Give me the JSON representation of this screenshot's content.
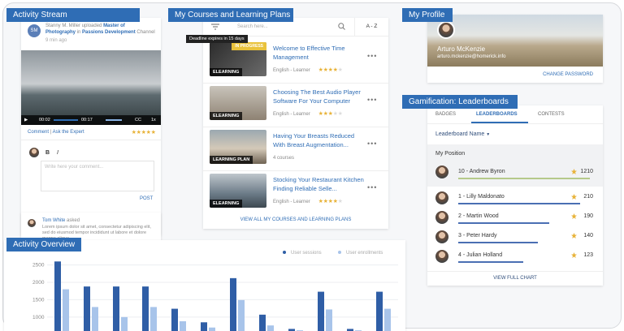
{
  "activity_stream": {
    "title": "Activity Stream",
    "post": {
      "avatar": "SM",
      "author": "Stanny M. Miller",
      "action": "uploaded",
      "item": "Master of Photography",
      "preposition": "in",
      "channel": "Passions Development",
      "channel_suffix": "Channel",
      "time": "9 min ago",
      "player": {
        "current": "00:02",
        "duration": "00:17",
        "cc": "CC",
        "speed": "1x"
      },
      "links": [
        "Comment",
        "|",
        "Ask the Expert"
      ],
      "rating": 5
    },
    "toolbar": [
      "B",
      "I"
    ],
    "comment_placeholder": "Write here your comment...",
    "post_button": "POST",
    "question": {
      "author": "Tom White",
      "action": "asked",
      "text": "Lorem ipsum dolor sit amet, consectetur adipiscing elit, sed do eiusmod tempor incididunt ut labore et dolore magna aliqua"
    }
  },
  "courses": {
    "title": "My Courses and Learning Plans",
    "search_placeholder": "Search here...",
    "sort": "A - Z",
    "tooltip": "Deadline expires in 15 days",
    "items": [
      {
        "title": "Welcome to Effective Time Management",
        "badge": "ELEARNING",
        "status": "IN PROGRESS",
        "meta": "English - Learner",
        "rating": 4
      },
      {
        "title": "Choosing The Best Audio Player Software For Your Computer",
        "badge": "ELEARNING",
        "meta": "English - Learner",
        "rating": 3
      },
      {
        "title": "Having Your Breasts Reduced With Breast Augmentation...",
        "badge": "LEARNING PLAN",
        "meta": "4 courses"
      },
      {
        "title": "Stocking Your Restaurant Kitchen Finding Reliable Selle...",
        "badge": "ELEARNING",
        "meta": "English - Learner",
        "rating": 4
      }
    ],
    "view_all": "VIEW ALL MY COURSES AND LEARNING PLANS"
  },
  "profile": {
    "title": "My Profile",
    "name": "Arturo McKenzie",
    "email": "arturo.mckenzie@homerick.info",
    "action": "CHANGE PASSWORD"
  },
  "leaderboards": {
    "title": "Gamification: Leaderboards",
    "tabs": [
      "BADGES",
      "LEADERBOARDS",
      "CONTESTS"
    ],
    "selector": "Leaderboard Name",
    "my_position_title": "My Position",
    "my_position": {
      "name": "10 - Andrew Byron",
      "score": "1210"
    },
    "entries": [
      {
        "name": "1 - Lilly Maldonato",
        "score": "210"
      },
      {
        "name": "2 - Martin Wood",
        "score": "190"
      },
      {
        "name": "3 - Peter Hardy",
        "score": "140"
      },
      {
        "name": "4 - Julian Holland",
        "score": "123"
      }
    ],
    "view_full": "VIEW FULL CHART"
  },
  "chart_data": {
    "type": "bar",
    "title": "Activity Overview",
    "categories": [
      null,
      null,
      null,
      null,
      null,
      null,
      null,
      null,
      null,
      null,
      null,
      null
    ],
    "series": [
      {
        "name": "User sessions",
        "color": "#2f5ea6",
        "values": [
          2600,
          1880,
          1880,
          1880,
          1240,
          850,
          2120,
          1070,
          660,
          1730,
          660,
          1730
        ]
      },
      {
        "name": "User enrollments",
        "color": "#a8c4ea",
        "values": [
          1800,
          1290,
          1000,
          1290,
          880,
          700,
          1490,
          760,
          620,
          1220,
          620,
          1240
        ]
      }
    ],
    "ylim": [
      600,
      2700
    ],
    "yticks": [
      1000,
      1500,
      2000,
      2500
    ],
    "grid": true
  }
}
